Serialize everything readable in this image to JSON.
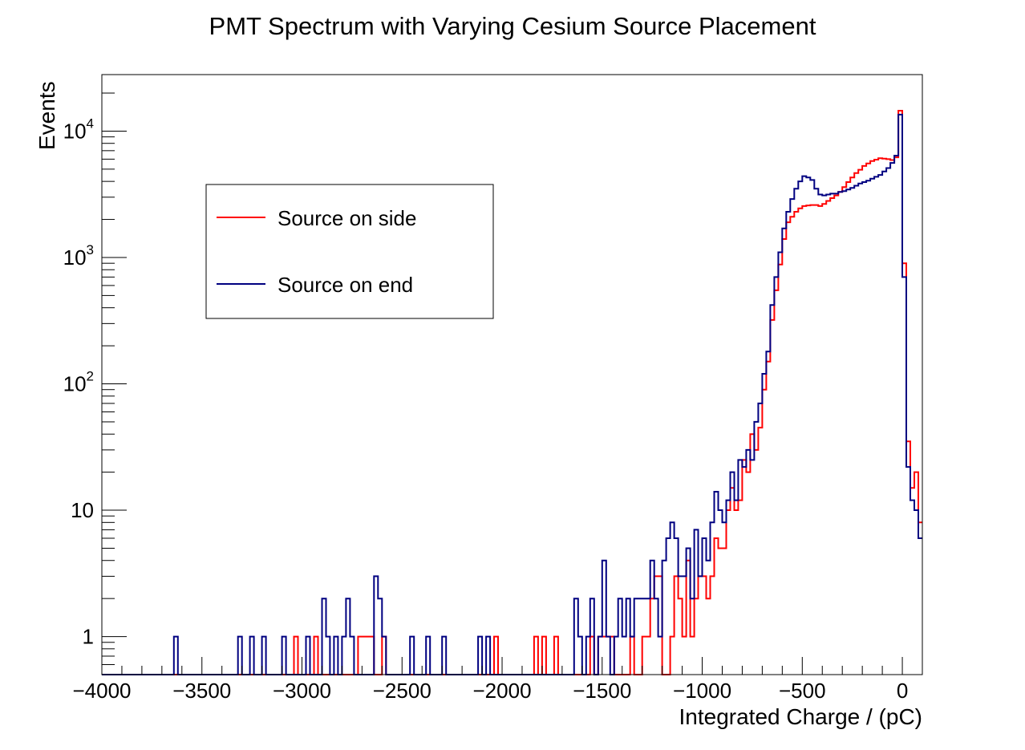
{
  "chart_data": {
    "type": "line",
    "title": "PMT Spectrum with Varying Cesium Source Placement",
    "xlabel": "Integrated Charge / (pC)",
    "ylabel": "Events",
    "xlim": [
      -4000,
      100
    ],
    "ylim": [
      0.5,
      28000
    ],
    "yscale": "log",
    "bin_width": 20,
    "x_ticks": [
      {
        "value": -4000,
        "label": "−4000"
      },
      {
        "value": -3500,
        "label": "−3500"
      },
      {
        "value": -3000,
        "label": "−3000"
      },
      {
        "value": -2500,
        "label": "−2500"
      },
      {
        "value": -2000,
        "label": "−2000"
      },
      {
        "value": -1500,
        "label": "−1500"
      },
      {
        "value": -1000,
        "label": "−1000"
      },
      {
        "value": -500,
        "label": "−500"
      },
      {
        "value": 0,
        "label": "0"
      }
    ],
    "y_ticks": [
      {
        "value": 1,
        "base": "1",
        "exp": ""
      },
      {
        "value": 10,
        "base": "10",
        "exp": ""
      },
      {
        "value": 100,
        "base": "10",
        "exp": "2"
      },
      {
        "value": 1000,
        "base": "10",
        "exp": "3"
      },
      {
        "value": 10000,
        "base": "10",
        "exp": "4"
      }
    ],
    "legend": {
      "position": "upper-left"
    },
    "series": [
      {
        "name": "Source on side",
        "color": "#ff0000",
        "points": [
          [
            -3030,
            1
          ],
          [
            -2930,
            1
          ],
          [
            -2710,
            1
          ],
          [
            -2690,
            1
          ],
          [
            -2670,
            1
          ],
          [
            -2650,
            1
          ],
          [
            -2590,
            1
          ],
          [
            -2030,
            1
          ],
          [
            -1830,
            1
          ],
          [
            -1790,
            1
          ],
          [
            -1730,
            1
          ],
          [
            -1550,
            1
          ],
          [
            -1510,
            1
          ],
          [
            -1490,
            1
          ],
          [
            -1470,
            1
          ],
          [
            -1450,
            1
          ],
          [
            -1350,
            1
          ],
          [
            -1290,
            1
          ],
          [
            -1270,
            1
          ],
          [
            -1250,
            2
          ],
          [
            -1230,
            3
          ],
          [
            -1210,
            3
          ],
          [
            -1150,
            1
          ],
          [
            -1130,
            3
          ],
          [
            -1110,
            2
          ],
          [
            -1090,
            1
          ],
          [
            -1070,
            4
          ],
          [
            -1050,
            1
          ],
          [
            -1030,
            2
          ],
          [
            -1010,
            3
          ],
          [
            -990,
            3
          ],
          [
            -970,
            2
          ],
          [
            -950,
            3
          ],
          [
            -930,
            6
          ],
          [
            -910,
            5
          ],
          [
            -890,
            5
          ],
          [
            -870,
            10
          ],
          [
            -850,
            15
          ],
          [
            -830,
            10
          ],
          [
            -810,
            12
          ],
          [
            -790,
            25
          ],
          [
            -770,
            20
          ],
          [
            -750,
            40
          ],
          [
            -730,
            30
          ],
          [
            -710,
            45
          ],
          [
            -690,
            90
          ],
          [
            -670,
            150
          ],
          [
            -650,
            320
          ],
          [
            -630,
            550
          ],
          [
            -610,
            880
          ],
          [
            -590,
            1400
          ],
          [
            -570,
            1900
          ],
          [
            -550,
            2100
          ],
          [
            -530,
            2300
          ],
          [
            -510,
            2450
          ],
          [
            -490,
            2550
          ],
          [
            -470,
            2580
          ],
          [
            -450,
            2600
          ],
          [
            -430,
            2600
          ],
          [
            -410,
            2550
          ],
          [
            -390,
            2650
          ],
          [
            -370,
            2800
          ],
          [
            -350,
            2950
          ],
          [
            -330,
            3100
          ],
          [
            -310,
            3300
          ],
          [
            -290,
            3600
          ],
          [
            -270,
            3950
          ],
          [
            -250,
            4300
          ],
          [
            -230,
            4650
          ],
          [
            -210,
            4950
          ],
          [
            -190,
            5300
          ],
          [
            -170,
            5550
          ],
          [
            -150,
            5800
          ],
          [
            -130,
            5950
          ],
          [
            -110,
            6100
          ],
          [
            -90,
            6050
          ],
          [
            -70,
            6000
          ],
          [
            -50,
            5900
          ],
          [
            -30,
            6200
          ],
          [
            -10,
            14500
          ],
          [
            10,
            900
          ],
          [
            30,
            35
          ],
          [
            50,
            15
          ],
          [
            70,
            20
          ],
          [
            90,
            8
          ]
        ]
      },
      {
        "name": "Source on end",
        "color": "#000080",
        "points": [
          [
            -3630,
            1
          ],
          [
            -3310,
            1
          ],
          [
            -3250,
            1
          ],
          [
            -3190,
            1
          ],
          [
            -3090,
            1
          ],
          [
            -2970,
            1
          ],
          [
            -2890,
            2
          ],
          [
            -2870,
            1
          ],
          [
            -2830,
            1
          ],
          [
            -2790,
            1
          ],
          [
            -2770,
            2
          ],
          [
            -2750,
            1
          ],
          [
            -2630,
            3
          ],
          [
            -2610,
            2
          ],
          [
            -2590,
            1
          ],
          [
            -2450,
            1
          ],
          [
            -2370,
            1
          ],
          [
            -2290,
            1
          ],
          [
            -2110,
            1
          ],
          [
            -2070,
            1
          ],
          [
            -1630,
            2
          ],
          [
            -1610,
            1
          ],
          [
            -1570,
            1
          ],
          [
            -1550,
            2
          ],
          [
            -1510,
            1
          ],
          [
            -1490,
            4
          ],
          [
            -1470,
            1
          ],
          [
            -1430,
            1
          ],
          [
            -1410,
            2
          ],
          [
            -1390,
            1
          ],
          [
            -1370,
            2
          ],
          [
            -1350,
            1
          ],
          [
            -1330,
            2
          ],
          [
            -1310,
            2
          ],
          [
            -1290,
            2
          ],
          [
            -1270,
            2
          ],
          [
            -1250,
            4
          ],
          [
            -1230,
            2
          ],
          [
            -1210,
            1
          ],
          [
            -1190,
            4
          ],
          [
            -1170,
            6
          ],
          [
            -1150,
            8
          ],
          [
            -1130,
            6
          ],
          [
            -1110,
            3
          ],
          [
            -1090,
            3
          ],
          [
            -1070,
            5
          ],
          [
            -1050,
            2
          ],
          [
            -1030,
            7
          ],
          [
            -1010,
            3
          ],
          [
            -990,
            6
          ],
          [
            -970,
            4
          ],
          [
            -950,
            8
          ],
          [
            -930,
            14
          ],
          [
            -910,
            10
          ],
          [
            -890,
            8
          ],
          [
            -870,
            12
          ],
          [
            -850,
            20
          ],
          [
            -830,
            12
          ],
          [
            -810,
            25
          ],
          [
            -790,
            22
          ],
          [
            -770,
            30
          ],
          [
            -750,
            25
          ],
          [
            -730,
            50
          ],
          [
            -710,
            70
          ],
          [
            -690,
            120
          ],
          [
            -670,
            180
          ],
          [
            -650,
            420
          ],
          [
            -630,
            700
          ],
          [
            -610,
            1100
          ],
          [
            -590,
            1700
          ],
          [
            -570,
            2300
          ],
          [
            -550,
            2900
          ],
          [
            -530,
            3500
          ],
          [
            -510,
            4000
          ],
          [
            -490,
            4400
          ],
          [
            -470,
            4300
          ],
          [
            -450,
            4100
          ],
          [
            -430,
            3500
          ],
          [
            -410,
            3150
          ],
          [
            -390,
            3100
          ],
          [
            -370,
            3150
          ],
          [
            -350,
            3200
          ],
          [
            -330,
            3200
          ],
          [
            -310,
            3300
          ],
          [
            -290,
            3350
          ],
          [
            -270,
            3450
          ],
          [
            -250,
            3550
          ],
          [
            -230,
            3700
          ],
          [
            -210,
            3850
          ],
          [
            -190,
            3950
          ],
          [
            -170,
            4050
          ],
          [
            -150,
            4200
          ],
          [
            -130,
            4350
          ],
          [
            -110,
            4500
          ],
          [
            -90,
            4800
          ],
          [
            -70,
            5100
          ],
          [
            -50,
            5600
          ],
          [
            -30,
            6400
          ],
          [
            -10,
            13500
          ],
          [
            10,
            700
          ],
          [
            30,
            22
          ],
          [
            50,
            12
          ],
          [
            70,
            10
          ],
          [
            90,
            6
          ]
        ]
      }
    ]
  }
}
